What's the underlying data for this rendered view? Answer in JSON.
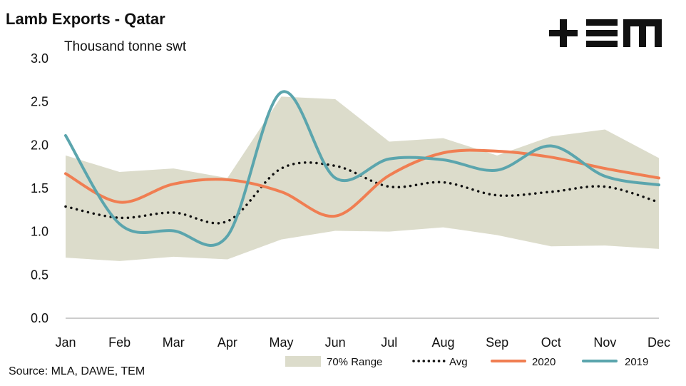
{
  "chart_data": {
    "type": "line",
    "title": "Lamb Exports - Qatar",
    "ylabel": "Thousand tonne swt",
    "source": "Source: MLA, DAWE, TEM",
    "categories": [
      "Jan",
      "Feb",
      "Mar",
      "Apr",
      "May",
      "Jun",
      "Jul",
      "Aug",
      "Sep",
      "Oct",
      "Nov",
      "Dec"
    ],
    "ylim": [
      0,
      3.0
    ],
    "yticks": [
      "0.0",
      "0.5",
      "1.0",
      "1.5",
      "2.0",
      "2.5",
      "3.0"
    ],
    "grid": false,
    "legend_position": "bottom-right",
    "range": {
      "name": "70% Range",
      "color": "#dcdccb",
      "upper": [
        1.88,
        1.69,
        1.73,
        1.62,
        2.56,
        2.53,
        2.04,
        2.08,
        1.88,
        2.1,
        2.18,
        1.85
      ],
      "lower": [
        0.7,
        0.66,
        0.71,
        0.68,
        0.91,
        1.01,
        1.0,
        1.05,
        0.96,
        0.83,
        0.84,
        0.8
      ]
    },
    "series": [
      {
        "name": "Avg",
        "color": "#111111",
        "style": "dotted",
        "values": [
          1.29,
          1.16,
          1.22,
          1.12,
          1.73,
          1.76,
          1.52,
          1.57,
          1.42,
          1.46,
          1.52,
          1.34
        ]
      },
      {
        "name": "2020",
        "color": "#f07e52",
        "style": "solid",
        "values": [
          1.67,
          1.34,
          1.55,
          1.6,
          1.46,
          1.18,
          1.65,
          1.91,
          1.93,
          1.86,
          1.73,
          1.62
        ]
      },
      {
        "name": "2019",
        "color": "#5ba5ad",
        "style": "solid",
        "values": [
          2.11,
          1.09,
          1.01,
          0.95,
          2.61,
          1.62,
          1.84,
          1.83,
          1.71,
          1.99,
          1.64,
          1.54
        ]
      }
    ]
  },
  "logo": {
    "text": "TEM",
    "color": "#111111"
  }
}
